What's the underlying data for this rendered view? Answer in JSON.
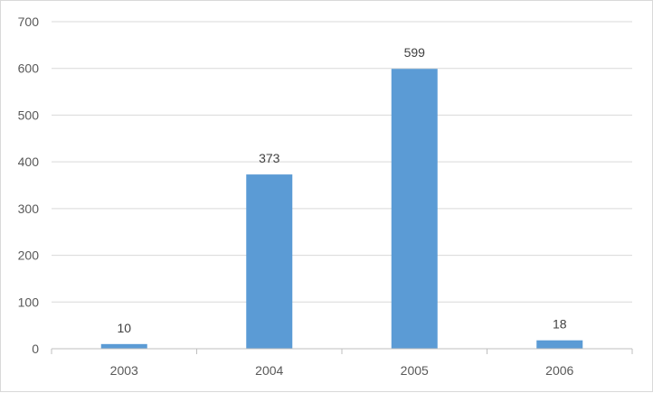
{
  "chart_data": {
    "type": "bar",
    "categories": [
      "2003",
      "2004",
      "2005",
      "2006"
    ],
    "values": [
      10,
      373,
      599,
      18
    ],
    "data_labels": [
      "10",
      "373",
      "599",
      "18"
    ],
    "title": "",
    "xlabel": "",
    "ylabel": "",
    "ylim": [
      0,
      700
    ],
    "yticks": [
      "0",
      "100",
      "200",
      "300",
      "400",
      "500",
      "600",
      "700"
    ],
    "grid": true,
    "legend": "none",
    "colors": {
      "bar": "#5b9bd5",
      "grid": "#d9d9d9",
      "axis": "#bfbfbf"
    }
  }
}
